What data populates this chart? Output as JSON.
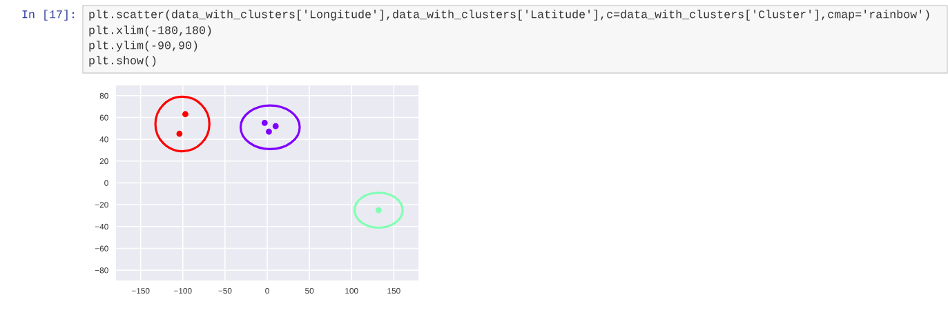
{
  "chart_data": {
    "type": "scatter",
    "series": [
      {
        "color": "#ff0000",
        "x": [
          -97,
          -104
        ],
        "values": [
          63,
          45
        ]
      },
      {
        "color": "#8000ff",
        "x": [
          -3,
          2,
          10
        ],
        "values": [
          55,
          47,
          52
        ]
      },
      {
        "color": "#80ffb4",
        "x": [
          132
        ],
        "values": [
          -25
        ]
      }
    ],
    "xlim": [
      -180,
      180
    ],
    "ylim": [
      -90,
      90
    ],
    "xticks": [
      {
        "value": -150,
        "label": "−150"
      },
      {
        "value": -100,
        "label": "−100"
      },
      {
        "value": -50,
        "label": "−50"
      },
      0,
      50,
      100,
      150
    ],
    "yticks": [
      {
        "value": -80,
        "label": "−80"
      },
      {
        "value": -60,
        "label": "−60"
      },
      {
        "value": -40,
        "label": "−40"
      },
      {
        "value": -20,
        "label": "−20"
      },
      0,
      20,
      40,
      60,
      80
    ],
    "grid": true,
    "marker": "circle",
    "annotations": [
      "In [17]:",
      "plt.scatter(data_with_clusters['Longitude'],data_with_clusters['Latitude'],c=data_with_clusters['Cluster'],cmap='rainbow')",
      "plt.xlim(-180,180)",
      "plt.ylim(-90,90)",
      "plt.show()"
    ]
  }
}
